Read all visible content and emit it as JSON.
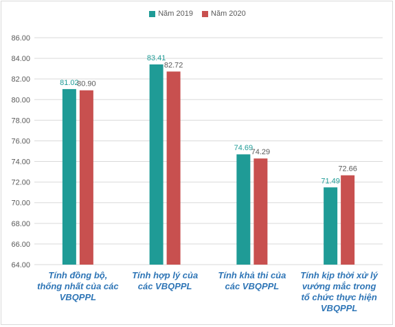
{
  "chart_data": {
    "type": "bar",
    "categories": [
      "Tính đồng bộ, thống nhất của các VBQPPL",
      "Tính hợp lý của các VBQPPL",
      "Tính khả thi của các VBQPPL",
      "Tính kịp thời xử lý vướng mắc trong tổ chức thực hiện VBQPPL"
    ],
    "category_lines": [
      [
        "Tính đồng bộ,",
        "thống nhất của các",
        "VBQPPL"
      ],
      [
        "Tính hợp lý của",
        "các VBQPPL"
      ],
      [
        "Tính khả thi của",
        "các VBQPPL"
      ],
      [
        "Tính kịp thời xử lý",
        "vướng mắc trong",
        "tổ chức thực hiện",
        "VBQPPL"
      ]
    ],
    "series": [
      {
        "name": "Năm 2019",
        "color": "#1f9b96",
        "values": [
          81.02,
          83.41,
          74.69,
          71.49
        ],
        "labels": [
          "81.02",
          "83.41",
          "74.69",
          "71.49"
        ]
      },
      {
        "name": "Năm 2020",
        "color": "#c8504f",
        "values": [
          80.9,
          82.72,
          74.29,
          72.66
        ],
        "labels": [
          "80.90",
          "82.72",
          "74.29",
          "72.66"
        ]
      }
    ],
    "ylim": [
      64,
      86
    ],
    "yticks": [
      "64.00",
      "66.00",
      "68.00",
      "70.00",
      "72.00",
      "74.00",
      "76.00",
      "78.00",
      "80.00",
      "82.00",
      "84.00",
      "86.00"
    ],
    "grid": true,
    "legend_position": "top",
    "title": "",
    "xlabel": "",
    "ylabel": ""
  }
}
